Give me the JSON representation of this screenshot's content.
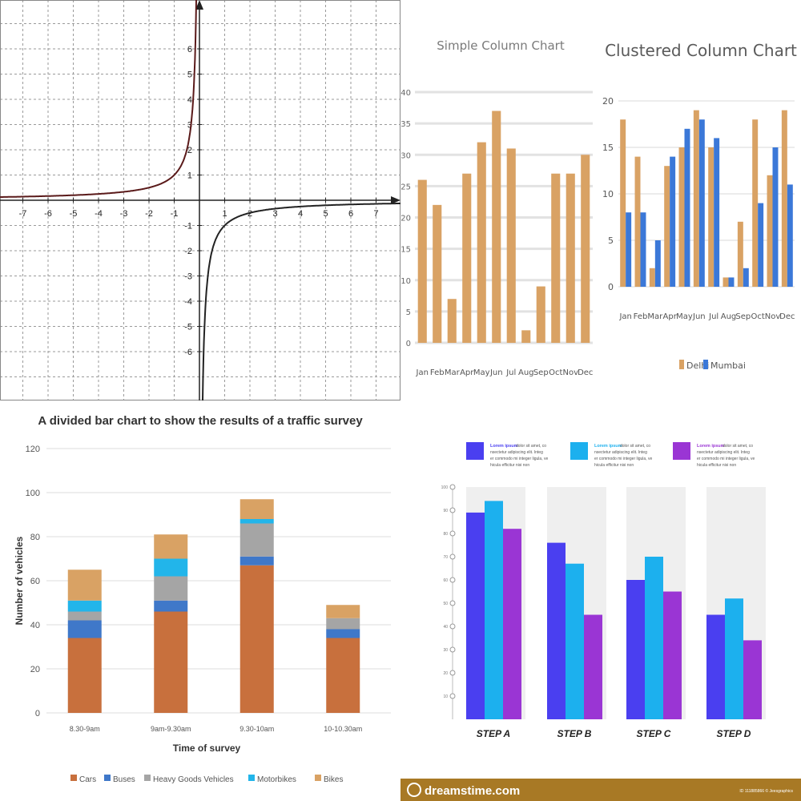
{
  "chart_data": [
    {
      "type": "line",
      "id": "hyperbola",
      "title": "",
      "function": "y = -1/x",
      "xlim": [
        -8,
        8
      ],
      "ylim": [
        -7,
        8
      ],
      "x_ticks": [
        -7,
        -6,
        -5,
        -4,
        -3,
        -2,
        -1,
        1,
        2,
        3,
        4,
        5,
        6,
        7
      ],
      "y_ticks": [
        -6,
        -5,
        -4,
        -3,
        -2,
        -1,
        1,
        2,
        3,
        4,
        5,
        6
      ],
      "x_tick_labels": [
        "-7",
        "-6",
        "-5",
        "-4",
        "-3",
        "-2",
        "-1",
        "1",
        "2",
        "3",
        "4",
        "5",
        "6",
        "7"
      ],
      "y_tick_labels": [
        "-6",
        "-5",
        "-4",
        "-3",
        "-2",
        "-1",
        "1",
        "2",
        "3",
        "4",
        "5",
        "6"
      ],
      "grid": true
    },
    {
      "type": "bar",
      "id": "simple-column",
      "title": "Simple Column Chart",
      "categories": [
        "Jan",
        "Feb",
        "Mar",
        "Apr",
        "May",
        "Jun",
        "Jul",
        "Aug",
        "Sep",
        "Oct",
        "Nov",
        "Dec"
      ],
      "values": [
        26,
        22,
        7,
        27,
        32,
        37,
        31,
        2,
        9,
        27,
        27,
        30
      ],
      "ylim": [
        0,
        40
      ],
      "y_ticks": [
        0,
        5,
        10,
        15,
        20,
        25,
        30,
        35,
        40
      ],
      "color": "#d9a264"
    },
    {
      "type": "bar",
      "id": "clustered-column",
      "title": "Clustered Column Chart",
      "categories": [
        "Jan",
        "Feb",
        "Mar",
        "Apr",
        "May",
        "Jun",
        "Jul",
        "Aug",
        "Sep",
        "Oct",
        "Nov",
        "Dec"
      ],
      "series": [
        {
          "name": "Delhi",
          "values": [
            18,
            14,
            2,
            13,
            15,
            19,
            15,
            1,
            7,
            18,
            12,
            19
          ],
          "color": "#d9a264"
        },
        {
          "name": "Mumbai",
          "values": [
            8,
            8,
            5,
            14,
            17,
            18,
            16,
            1,
            2,
            9,
            15,
            11
          ],
          "color": "#3b78d8"
        }
      ],
      "ylim": [
        0,
        20
      ],
      "y_ticks": [
        0,
        5,
        10,
        15,
        20
      ],
      "legend": "bottom"
    },
    {
      "type": "bar",
      "id": "traffic-survey",
      "stacked": true,
      "title": "A divided bar chart to show the results of a traffic survey",
      "xlabel": "Time of survey",
      "ylabel": "Number of vehicles",
      "categories": [
        "8.30-9am",
        "9am-9.30am",
        "9.30-10am",
        "10-10.30am"
      ],
      "series": [
        {
          "name": "Cars",
          "values": [
            34,
            46,
            67,
            34
          ],
          "color": "#c8703d"
        },
        {
          "name": "Buses",
          "values": [
            8,
            5,
            4,
            4
          ],
          "color": "#3f78c9"
        },
        {
          "name": "Heavy Goods Vehicles",
          "values": [
            4,
            11,
            15,
            5
          ],
          "color": "#a5a5a5"
        },
        {
          "name": "Motorbikes",
          "values": [
            5,
            8,
            2,
            0
          ],
          "color": "#22b5ea"
        },
        {
          "name": "Bikes",
          "values": [
            14,
            11,
            9,
            6
          ],
          "color": "#d9a264"
        }
      ],
      "ylim": [
        0,
        120
      ],
      "y_ticks": [
        0,
        20,
        40,
        60,
        80,
        100,
        120
      ],
      "legend": "bottom"
    },
    {
      "type": "bar",
      "id": "steps",
      "title": "",
      "categories": [
        "STEP A",
        "STEP B",
        "STEP C",
        "STEP D"
      ],
      "series": [
        {
          "name": "Lorem ipsum",
          "values": [
            89,
            76,
            60,
            45
          ],
          "color": "#4a3ff0"
        },
        {
          "name": "Lorem ipsum",
          "values": [
            94,
            67,
            70,
            52
          ],
          "color": "#1cb0ee"
        },
        {
          "name": "Lorem ipsum",
          "values": [
            82,
            45,
            55,
            34
          ],
          "color": "#9a35d4"
        }
      ],
      "ylim": [
        0,
        100
      ],
      "y_ticks": [
        10,
        20,
        30,
        40,
        50,
        60,
        70,
        80,
        90,
        100
      ],
      "legend_texts": [
        "Lorem ipsum dolor sit amet, consectetur adipiscing elit. Integer commodo mi integer ligula, vehicula efficitur nisi non",
        "Lorem ipsum dolor sit amet, consectetur adipiscing elit. Integer commodo mi integer ligula, vehicula efficitur nisi non",
        "Lorem ipsum dolor sit amet, consectetur adipiscing elit. Integer commodo mi integer ligula, vehicula efficitur nisi non"
      ],
      "watermark": "dreamstime.com",
      "footer_id": "ID 111885866 © Jeesgraphics"
    }
  ]
}
